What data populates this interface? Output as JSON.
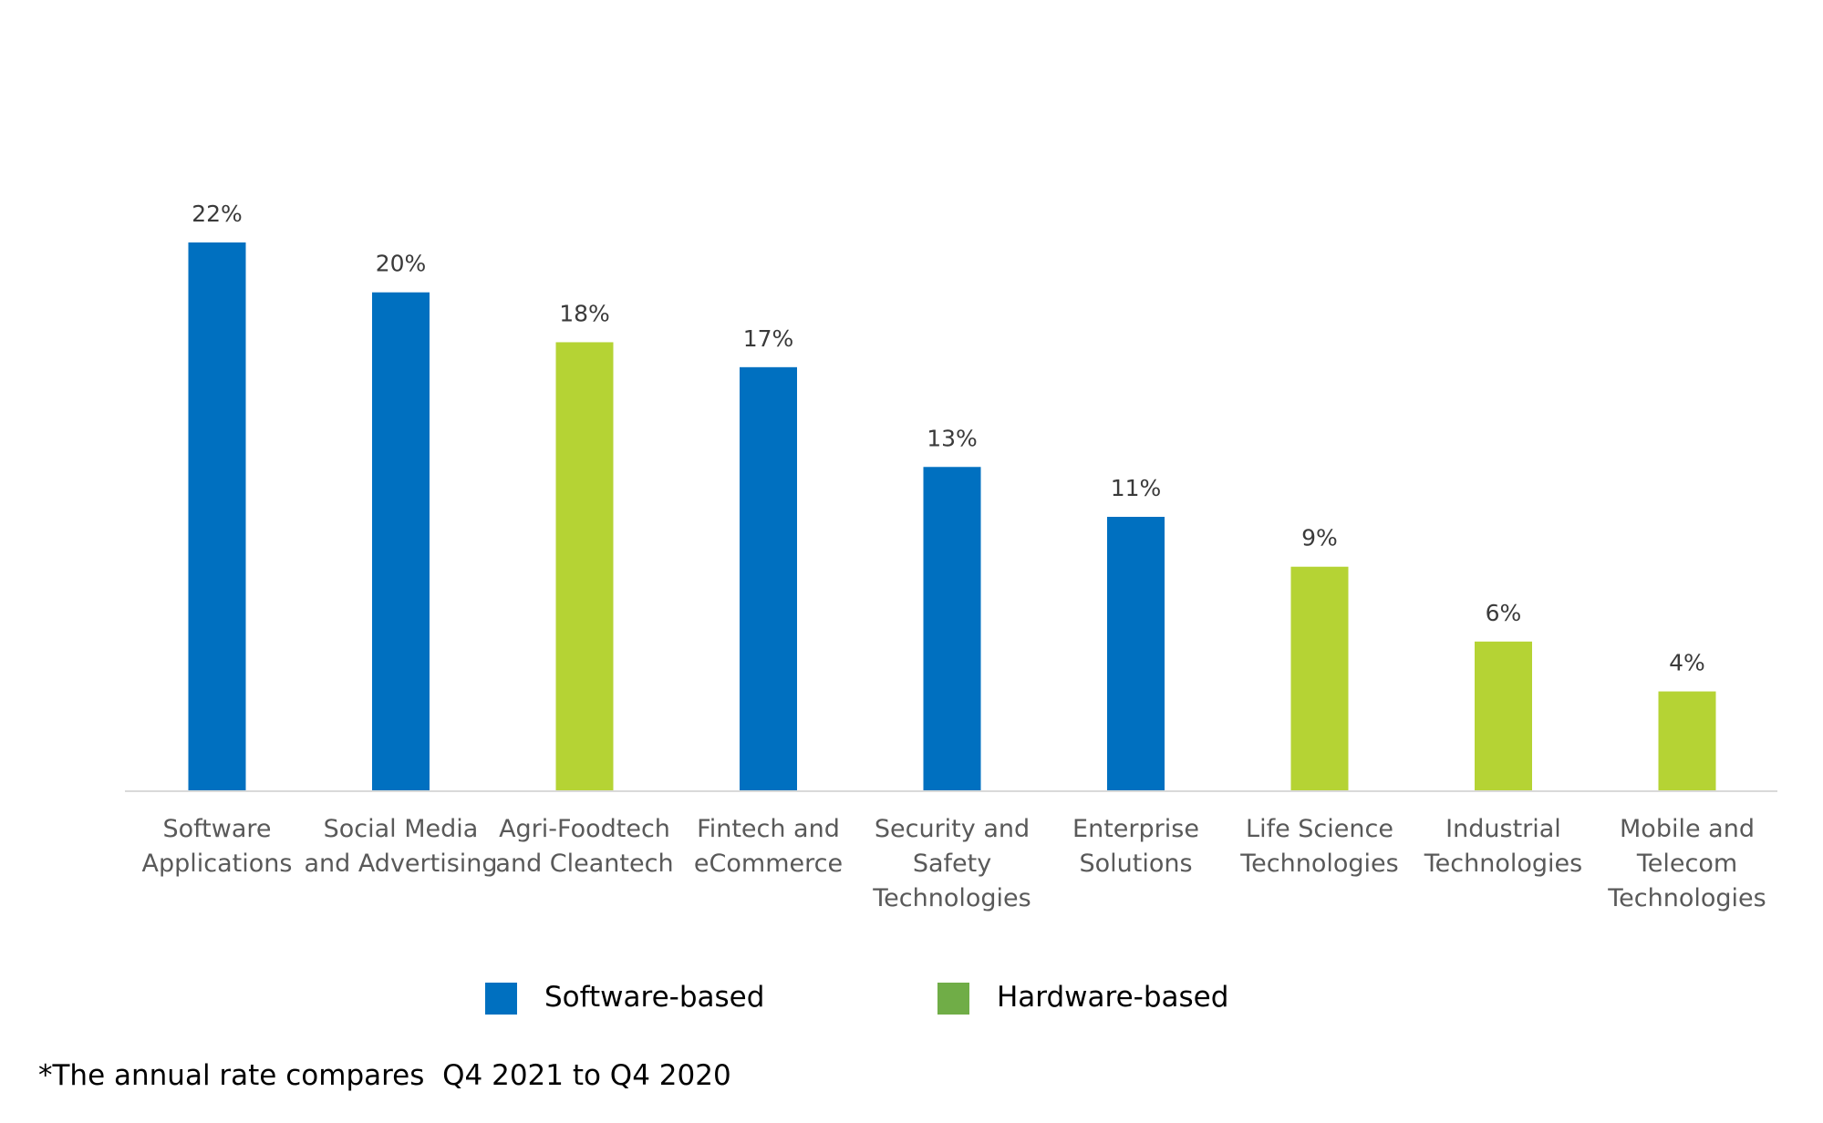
{
  "chart_data": {
    "type": "bar",
    "categories": [
      "Software Applications",
      "Social Media and Advertising",
      "Agri-Foodtech and Cleantech",
      "Fintech and eCommerce",
      "Security and Safety Technologies",
      "Enterprise Solutions",
      "Life Science Technologies",
      "Industrial Technologies",
      "Mobile and Telecom Technologies"
    ],
    "category_lines": [
      [
        "Software",
        "Applications"
      ],
      [
        "Social Media",
        "and Advertising"
      ],
      [
        "Agri-Foodtech",
        "and Cleantech"
      ],
      [
        "Fintech and",
        "eCommerce"
      ],
      [
        "Security and",
        "Safety",
        "Technologies"
      ],
      [
        "Enterprise",
        "Solutions"
      ],
      [
        "Life Science",
        "Technologies"
      ],
      [
        "Industrial",
        "Technologies"
      ],
      [
        "Mobile and",
        "Telecom",
        "Technologies"
      ]
    ],
    "values": [
      22,
      20,
      18,
      17,
      13,
      11,
      9,
      6,
      4
    ],
    "value_labels": [
      "22%",
      "20%",
      "18%",
      "17%",
      "13%",
      "11%",
      "9%",
      "6%",
      "4%"
    ],
    "groups": [
      "Software-based",
      "Software-based",
      "Hardware-based",
      "Software-based",
      "Software-based",
      "Software-based",
      "Hardware-based",
      "Hardware-based",
      "Hardware-based"
    ],
    "bar_colors": {
      "Software-based": "#0070C0",
      "Hardware-based": "#B5D334"
    },
    "legend": [
      {
        "label": "Software-based",
        "color": "#0070C0"
      },
      {
        "label": "Hardware-based",
        "color": "#70AD47"
      }
    ],
    "legend_position": "bottom",
    "ylim": [
      0,
      22
    ],
    "grid": false,
    "y_axis_visible": false,
    "title": "",
    "xlabel": "",
    "ylabel": ""
  },
  "footnote": "*The annual rate compares  Q4 2021 to Q4 2020",
  "colors": {
    "axis_line": "#d9d9d9"
  }
}
